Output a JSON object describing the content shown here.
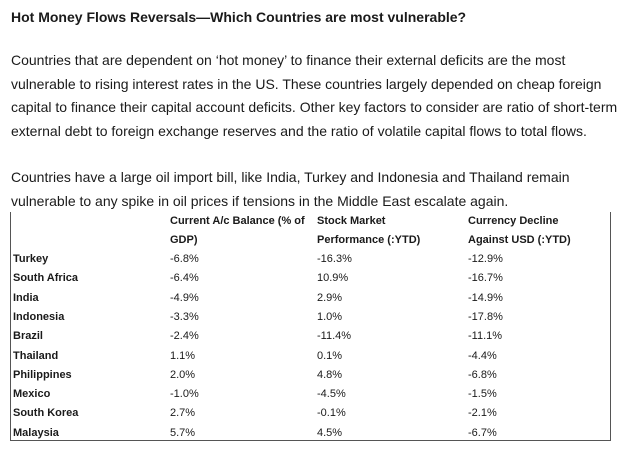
{
  "title": "Hot Money Flows Reversals—Which Countries are most vulnerable?",
  "paragraph1": [
    "Countries that are dependent on ‘hot money’ to finance their external deficits are the most",
    "vulnerable to rising interest rates in the US.  These countries largely depended on cheap foreign",
    "capital to finance their capital account deficits. Other key factors to consider are ratio of short-term",
    " external debt to foreign exchange reserves and the ratio of volatile capital flows to total flows."
  ],
  "paragraph2": [
    "Countries have a large oil import bill, like India, Turkey and Indonesia and Thailand remain",
    "vulnerable to any spike in oil prices if tensions in the Middle East escalate again."
  ],
  "table": {
    "headers": [
      {
        "line1": "Current A/c Balance (% of",
        "line2": "GDP)"
      },
      {
        "line1": "Stock Market",
        "line2": "Performance (:YTD)"
      },
      {
        "line1": "Currency Decline",
        "line2": "Against USD (:YTD)"
      }
    ],
    "rows": [
      {
        "country": "Turkey",
        "current_account": "-6.8%",
        "stock_market": "-16.3%",
        "currency": "-12.9%"
      },
      {
        "country": "South Africa",
        "current_account": "-6.4%",
        "stock_market": "10.9%",
        "currency": "-16.7%"
      },
      {
        "country": "India",
        "current_account": "-4.9%",
        "stock_market": "2.9%",
        "currency": "-14.9%"
      },
      {
        "country": "Indonesia",
        "current_account": "-3.3%",
        "stock_market": "1.0%",
        "currency": "-17.8%"
      },
      {
        "country": "Brazil",
        "current_account": "-2.4%",
        "stock_market": "-11.4%",
        "currency": "-11.1%"
      },
      {
        "country": "Thailand",
        "current_account": "1.1%",
        "stock_market": "0.1%",
        "currency": "-4.4%"
      },
      {
        "country": "Philippines",
        "current_account": "2.0%",
        "stock_market": "4.8%",
        "currency": "-6.8%"
      },
      {
        "country": "Mexico",
        "current_account": "-1.0%",
        "stock_market": "-4.5%",
        "currency": "-1.5%"
      },
      {
        "country": "South Korea",
        "current_account": "2.7%",
        "stock_market": "-0.1%",
        "currency": "-2.1%"
      },
      {
        "country": "Malaysia",
        "current_account": "5.7%",
        "stock_market": "4.5%",
        "currency": "-6.7%"
      }
    ]
  }
}
